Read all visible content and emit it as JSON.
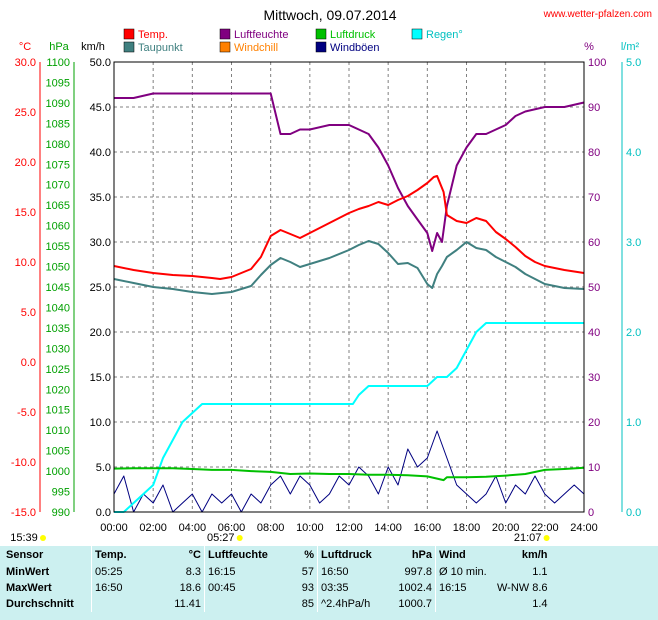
{
  "site": "www.wetter-pfalzen.com",
  "chart_data": {
    "type": "line",
    "title": "Mittwoch, 09.07.2014",
    "x_ticks": [
      "00:00",
      "02:00",
      "04:00",
      "06:00",
      "08:00",
      "10:00",
      "12:00",
      "14:00",
      "16:00",
      "18:00",
      "20:00",
      "22:00",
      "24:00"
    ],
    "xlim": [
      0,
      24
    ],
    "axes": {
      "temp": {
        "unit": "°C",
        "color": "#ff0000",
        "ylim": [
          -15,
          30
        ],
        "ticks": [
          "-15.0",
          "-10.0",
          "-5.0",
          "0.0",
          "5.0",
          "10.0",
          "15.0",
          "20.0",
          "25.0",
          "30.0"
        ]
      },
      "pressure": {
        "unit": "hPa",
        "color": "#00a000",
        "ylim": [
          990,
          1100
        ],
        "ticks": [
          "990",
          "995",
          "1000",
          "1005",
          "1010",
          "1015",
          "1020",
          "1025",
          "1030",
          "1035",
          "1040",
          "1045",
          "1050",
          "1055",
          "1060",
          "1065",
          "1070",
          "1075",
          "1080",
          "1085",
          "1090",
          "1095",
          "1100"
        ]
      },
      "wind": {
        "unit": "km/h",
        "color": "#000000",
        "ylim": [
          0,
          50
        ],
        "ticks": [
          "0.0",
          "5.0",
          "10.0",
          "15.0",
          "20.0",
          "25.0",
          "30.0",
          "35.0",
          "40.0",
          "45.0",
          "50.0"
        ]
      },
      "humidity": {
        "unit": "%",
        "color": "#800080",
        "ylim": [
          0,
          100
        ],
        "ticks": [
          "0",
          "10",
          "20",
          "30",
          "40",
          "50",
          "60",
          "70",
          "80",
          "90",
          "100"
        ]
      },
      "rain": {
        "unit": "l/m²",
        "color": "#00c0c0",
        "ylim": [
          0,
          5
        ],
        "ticks": [
          "0.0",
          "1.0",
          "2.0",
          "3.0",
          "4.0",
          "5.0"
        ]
      }
    },
    "legend": [
      {
        "name": "Temp.",
        "color": "#ff0000"
      },
      {
        "name": "Luftfeuchte",
        "color": "#800080"
      },
      {
        "name": "Luftdruck",
        "color": "#00c000"
      },
      {
        "name": "Regen°",
        "color": "#00ffff"
      },
      {
        "name": "Taupunkt",
        "color": "#408080"
      },
      {
        "name": "Windchill",
        "color": "#ff8000"
      },
      {
        "name": "Windböen",
        "color": "#000080"
      }
    ],
    "series": [
      {
        "name": "Temp.",
        "axis": "temp",
        "color": "#ff0000",
        "x": [
          0,
          1,
          2,
          3,
          4,
          5,
          5.42,
          6,
          7,
          7.5,
          8,
          8.5,
          9,
          9.5,
          10,
          10.5,
          11,
          11.5,
          12,
          12.5,
          13,
          13.5,
          14,
          14.5,
          15,
          15.5,
          16,
          16.33,
          16.5,
          16.83,
          17,
          17.5,
          18,
          18.5,
          19,
          19.5,
          20,
          20.5,
          21,
          21.5,
          22,
          23,
          24
        ],
        "y": [
          9.6,
          9.2,
          8.9,
          8.7,
          8.6,
          8.4,
          8.3,
          8.5,
          9.3,
          10.5,
          12.6,
          13.2,
          12.8,
          12.4,
          12.9,
          13.4,
          13.9,
          14.4,
          14.9,
          15.3,
          15.6,
          16.0,
          15.7,
          16.2,
          16.6,
          17.2,
          17.9,
          18.5,
          18.6,
          17.0,
          14.7,
          14.1,
          13.9,
          14.4,
          14.1,
          13.0,
          12.3,
          11.5,
          10.6,
          10.0,
          9.6,
          9.2,
          8.9
        ]
      },
      {
        "name": "Taupunkt",
        "axis": "temp",
        "color": "#408080",
        "x": [
          0,
          1,
          2,
          3,
          4,
          5,
          6,
          7,
          7.5,
          8,
          8.5,
          9,
          9.5,
          10,
          11,
          12,
          12.5,
          13,
          13.5,
          14,
          14.5,
          15,
          15.5,
          16,
          16.25,
          16.5,
          16.75,
          17,
          17.5,
          18,
          18.5,
          19,
          19.5,
          20,
          20.5,
          21,
          22,
          23,
          24
        ],
        "y": [
          8.3,
          7.9,
          7.5,
          7.3,
          7.0,
          6.8,
          7.0,
          7.6,
          8.7,
          9.7,
          10.4,
          10.0,
          9.5,
          9.8,
          10.4,
          11.2,
          11.7,
          12.1,
          11.8,
          10.9,
          9.8,
          9.9,
          9.4,
          7.8,
          7.4,
          8.8,
          9.6,
          10.5,
          11.2,
          12.0,
          11.4,
          11.2,
          10.5,
          10.0,
          9.5,
          8.8,
          7.8,
          7.4,
          7.3
        ]
      },
      {
        "name": "Luftfeuchte",
        "axis": "humidity",
        "color": "#800080",
        "x": [
          0,
          1,
          2,
          3,
          4,
          5,
          6,
          7,
          8,
          8.5,
          9,
          9.5,
          10,
          11,
          12,
          12.5,
          13,
          13.5,
          14,
          14.5,
          15,
          15.5,
          16,
          16.25,
          16.5,
          16.75,
          17,
          17.5,
          18,
          18.5,
          19,
          19.5,
          20,
          20.5,
          21,
          22,
          23,
          24
        ],
        "y": [
          92,
          92,
          93,
          93,
          93,
          93,
          93,
          93,
          93,
          84,
          84,
          85,
          85,
          86,
          86,
          85,
          84,
          81,
          77,
          72,
          68,
          65,
          62,
          58,
          62,
          60,
          68,
          77,
          81,
          84,
          84,
          85,
          86,
          88,
          89,
          90,
          90,
          91
        ]
      },
      {
        "name": "Luftdruck",
        "axis": "pressure",
        "color": "#00c000",
        "x": [
          0,
          1,
          2,
          3,
          4,
          5,
          6,
          7,
          8,
          9,
          10,
          11,
          12,
          13,
          14,
          15,
          16,
          16.83,
          17,
          18,
          19,
          20,
          21,
          22,
          23,
          24
        ],
        "y": [
          1000.6,
          1000.7,
          1000.7,
          1000.7,
          1000.5,
          1000.3,
          1000.3,
          1000.0,
          999.8,
          999.3,
          999.4,
          999.3,
          999.3,
          999.1,
          999.1,
          999.0,
          998.7,
          997.8,
          998.5,
          998.5,
          998.6,
          998.9,
          999.3,
          1000.3,
          1000.5,
          1000.8
        ]
      },
      {
        "name": "Regen°",
        "axis": "rain",
        "color": "#00ffff",
        "x": [
          0,
          0.5,
          1,
          1.5,
          2,
          2.5,
          3,
          3.5,
          4,
          4.5,
          5,
          10,
          12,
          12.2,
          12.5,
          13,
          14,
          16,
          16.5,
          17,
          17.5,
          18,
          18.5,
          19,
          20,
          22,
          24
        ],
        "y": [
          0,
          0,
          0.1,
          0.2,
          0.3,
          0.6,
          0.8,
          1.0,
          1.1,
          1.2,
          1.2,
          1.2,
          1.2,
          1.2,
          1.3,
          1.4,
          1.4,
          1.4,
          1.5,
          1.5,
          1.6,
          1.8,
          2.0,
          2.1,
          2.1,
          2.1,
          2.1
        ]
      },
      {
        "name": "Windböen",
        "axis": "wind",
        "color": "#000080",
        "x": [
          0,
          0.5,
          1,
          1.5,
          2,
          2.5,
          3,
          3.5,
          4,
          4.5,
          5,
          5.5,
          6,
          6.5,
          7,
          7.5,
          8,
          8.5,
          9,
          9.5,
          10,
          10.5,
          11,
          11.5,
          12,
          12.5,
          13,
          13.5,
          14,
          14.5,
          15,
          15.5,
          16,
          16.5,
          17,
          17.5,
          18,
          18.5,
          19,
          19.5,
          20,
          20.5,
          21,
          21.5,
          22,
          22.5,
          23,
          23.5,
          24
        ],
        "y": [
          2,
          4,
          0,
          2,
          1,
          3,
          0,
          1,
          2,
          0,
          2,
          1,
          2,
          0,
          2,
          1,
          3,
          4,
          2,
          4,
          3,
          1,
          2,
          4,
          3,
          5,
          4,
          2,
          5,
          3,
          7,
          5,
          6,
          9,
          6,
          3,
          2,
          1,
          2,
          4,
          1,
          3,
          2,
          4,
          2,
          1,
          2,
          3,
          2
        ]
      }
    ],
    "daily_markers": [
      {
        "label": "15:39",
        "x": -2
      },
      {
        "label": "05:27",
        "x": 5.45
      },
      {
        "label": "21:07",
        "x": 21.12
      }
    ]
  },
  "stats_table": {
    "headers": [
      "Sensor",
      "Temp.",
      "°C",
      "Luftfeuchte",
      "%",
      "Luftdruck",
      "hPa",
      "Wind",
      "km/h"
    ],
    "rows": [
      [
        "MinWert",
        "05:25",
        "8.3",
        "16:15",
        "57",
        "16:50",
        "997.8",
        "Ø 10 min.",
        "1.1"
      ],
      [
        "MaxWert",
        "16:50",
        "18.6",
        "00:45",
        "93",
        "03:35",
        "1002.4",
        "16:15",
        "W-NW 8.6"
      ],
      [
        "Durchschnitt",
        "",
        "11.41",
        "",
        "85",
        "^2.4hPa/h",
        "1000.7",
        "",
        "1.4"
      ]
    ]
  }
}
